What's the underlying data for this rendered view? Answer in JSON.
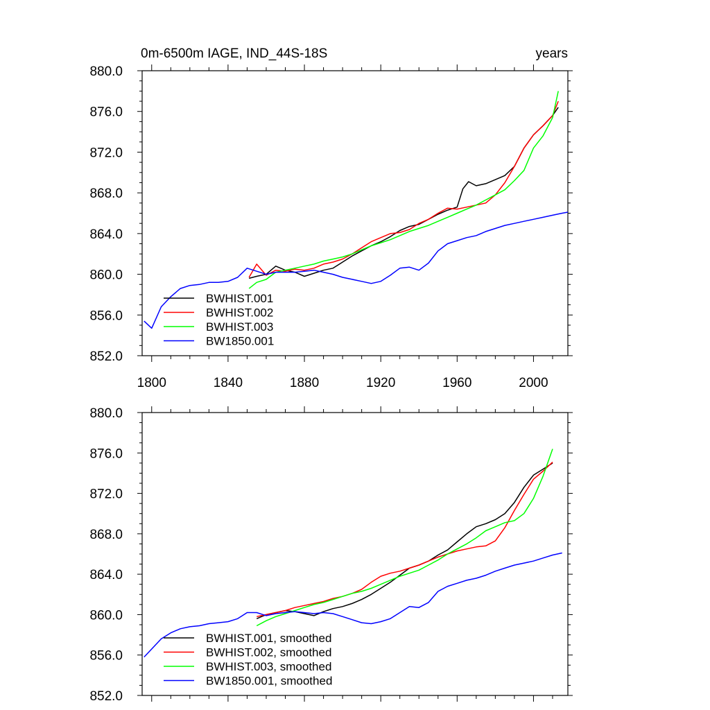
{
  "chart_data": [
    {
      "type": "line",
      "title": "0m-6500m IAGE, IND_44S-18S",
      "units": "years",
      "ylim": [
        852.0,
        880.0
      ],
      "xlim": [
        1795,
        2018
      ],
      "yticks": [
        "852.0",
        "856.0",
        "860.0",
        "864.0",
        "868.0",
        "872.0",
        "876.0",
        "880.0"
      ],
      "xticks": [
        "1800",
        "1840",
        "1880",
        "1920",
        "1960",
        "2000"
      ],
      "legend_position": "bottom-left",
      "grid": false,
      "series": [
        {
          "name": "BWHIST.001",
          "color": "#000000",
          "x": [
            1851,
            1855,
            1860,
            1865,
            1870,
            1875,
            1880,
            1885,
            1890,
            1895,
            1900,
            1905,
            1910,
            1915,
            1920,
            1925,
            1930,
            1935,
            1940,
            1945,
            1950,
            1955,
            1960,
            1963,
            1966,
            1970,
            1975,
            1980,
            1985,
            1990,
            1995,
            2000,
            2005,
            2010,
            2013
          ],
          "values": [
            859.6,
            859.8,
            860.0,
            860.8,
            860.4,
            860.2,
            859.8,
            860.1,
            860.4,
            860.6,
            861.2,
            861.8,
            862.3,
            862.8,
            863.2,
            863.7,
            864.3,
            864.7,
            864.9,
            865.4,
            865.9,
            866.3,
            866.6,
            868.4,
            869.1,
            868.7,
            868.9,
            869.3,
            869.7,
            870.6,
            872.4,
            873.7,
            874.6,
            875.6,
            876.4
          ]
        },
        {
          "name": "BWHIST.002",
          "color": "#ff0000",
          "x": [
            1851,
            1855,
            1860,
            1865,
            1870,
            1875,
            1880,
            1885,
            1890,
            1895,
            1900,
            1905,
            1910,
            1915,
            1920,
            1925,
            1930,
            1935,
            1940,
            1945,
            1950,
            1955,
            1960,
            1965,
            1970,
            1975,
            1980,
            1985,
            1990,
            1995,
            2000,
            2005,
            2010,
            2013
          ],
          "values": [
            859.7,
            861.0,
            859.9,
            860.4,
            860.3,
            860.5,
            860.4,
            860.6,
            861.0,
            861.2,
            861.5,
            862.0,
            862.6,
            863.2,
            863.6,
            864.0,
            864.1,
            864.4,
            865.0,
            865.4,
            866.0,
            866.5,
            866.4,
            866.6,
            866.8,
            867.0,
            867.8,
            869.0,
            870.6,
            872.4,
            873.7,
            874.6,
            875.6,
            877.0
          ]
        },
        {
          "name": "BWHIST.003",
          "color": "#00ff00",
          "x": [
            1851,
            1855,
            1860,
            1865,
            1870,
            1875,
            1880,
            1885,
            1890,
            1895,
            1900,
            1905,
            1910,
            1915,
            1920,
            1925,
            1930,
            1935,
            1940,
            1945,
            1950,
            1955,
            1960,
            1965,
            1970,
            1975,
            1980,
            1985,
            1990,
            1995,
            2000,
            2005,
            2010,
            2013
          ],
          "values": [
            858.6,
            859.2,
            859.5,
            860.2,
            860.4,
            860.6,
            860.8,
            861.0,
            861.3,
            861.5,
            861.7,
            862.0,
            862.4,
            862.8,
            863.1,
            863.4,
            863.8,
            864.2,
            864.5,
            864.8,
            865.2,
            865.6,
            866.0,
            866.4,
            866.8,
            867.3,
            867.8,
            868.3,
            869.2,
            870.2,
            872.4,
            873.6,
            875.4,
            878.0
          ]
        },
        {
          "name": "BW1850.001",
          "color": "#0000ff",
          "x": [
            1796,
            1800,
            1805,
            1810,
            1815,
            1820,
            1825,
            1830,
            1835,
            1840,
            1845,
            1850,
            1855,
            1860,
            1865,
            1870,
            1875,
            1880,
            1885,
            1890,
            1895,
            1900,
            1905,
            1910,
            1915,
            1920,
            1925,
            1930,
            1935,
            1940,
            1945,
            1950,
            1955,
            1960,
            1965,
            1970,
            1975,
            1980,
            1985,
            1990,
            1995,
            2000,
            2005,
            2010,
            2015,
            2018
          ],
          "values": [
            855.4,
            854.7,
            856.8,
            857.8,
            858.6,
            858.9,
            859.0,
            859.2,
            859.2,
            859.3,
            859.7,
            860.6,
            860.3,
            860.0,
            860.2,
            860.2,
            860.2,
            860.3,
            860.4,
            860.2,
            860.0,
            859.7,
            859.5,
            859.3,
            859.1,
            859.3,
            859.9,
            860.6,
            860.7,
            860.4,
            861.1,
            862.3,
            863.0,
            863.3,
            863.6,
            863.8,
            864.2,
            864.5,
            864.8,
            865.0,
            865.2,
            865.4,
            865.6,
            865.8,
            866.0,
            866.1
          ]
        }
      ]
    },
    {
      "type": "line",
      "ylim": [
        852.0,
        880.0
      ],
      "xlim": [
        1795,
        2018
      ],
      "yticks": [
        "852.0",
        "856.0",
        "860.0",
        "864.0",
        "868.0",
        "872.0",
        "876.0",
        "880.0"
      ],
      "legend_position": "bottom-left",
      "grid": false,
      "series": [
        {
          "name": "BWHIST.001, smoothed",
          "color": "#000000",
          "x": [
            1855,
            1860,
            1865,
            1870,
            1875,
            1880,
            1885,
            1890,
            1895,
            1900,
            1905,
            1910,
            1915,
            1920,
            1925,
            1930,
            1935,
            1940,
            1945,
            1950,
            1955,
            1960,
            1965,
            1970,
            1975,
            1980,
            1985,
            1990,
            1995,
            2000,
            2005,
            2010
          ],
          "values": [
            859.6,
            860.0,
            860.2,
            860.4,
            860.3,
            860.1,
            859.9,
            860.3,
            860.6,
            860.8,
            861.1,
            861.5,
            862.0,
            862.6,
            863.2,
            863.9,
            864.6,
            864.9,
            865.3,
            865.9,
            866.4,
            867.2,
            868.0,
            868.7,
            869.0,
            869.4,
            870.0,
            871.1,
            872.6,
            873.8,
            874.4,
            875.0
          ]
        },
        {
          "name": "BWHIST.002, smoothed",
          "color": "#ff0000",
          "x": [
            1855,
            1860,
            1865,
            1870,
            1875,
            1880,
            1885,
            1890,
            1895,
            1900,
            1905,
            1910,
            1915,
            1920,
            1925,
            1930,
            1935,
            1940,
            1945,
            1950,
            1955,
            1960,
            1965,
            1970,
            1975,
            1980,
            1985,
            1990,
            1995,
            2000,
            2005,
            2010
          ],
          "values": [
            859.8,
            860.0,
            860.2,
            860.4,
            860.7,
            860.9,
            861.1,
            861.3,
            861.6,
            861.8,
            862.1,
            862.5,
            863.2,
            863.8,
            864.1,
            864.3,
            864.6,
            864.9,
            865.3,
            865.7,
            866.0,
            866.3,
            866.5,
            866.7,
            866.8,
            867.3,
            868.6,
            870.3,
            871.9,
            873.4,
            874.2,
            875.1
          ]
        },
        {
          "name": "BWHIST.003, smoothed",
          "color": "#00ff00",
          "x": [
            1855,
            1860,
            1865,
            1870,
            1875,
            1880,
            1885,
            1890,
            1895,
            1900,
            1905,
            1910,
            1915,
            1920,
            1925,
            1930,
            1935,
            1940,
            1945,
            1950,
            1955,
            1960,
            1965,
            1970,
            1975,
            1980,
            1985,
            1990,
            1995,
            2000,
            2005,
            2010
          ],
          "values": [
            858.9,
            859.4,
            859.8,
            860.1,
            860.4,
            860.7,
            861.0,
            861.2,
            861.5,
            861.8,
            862.1,
            862.3,
            862.6,
            863.0,
            863.4,
            863.8,
            864.1,
            864.4,
            864.9,
            865.4,
            866.0,
            866.5,
            867.0,
            867.6,
            868.3,
            868.7,
            869.1,
            869.3,
            870.0,
            871.5,
            873.7,
            876.4
          ]
        },
        {
          "name": "BW1850.001, smoothed",
          "color": "#0000ff",
          "x": [
            1796,
            1800,
            1805,
            1810,
            1815,
            1820,
            1825,
            1830,
            1835,
            1840,
            1845,
            1850,
            1855,
            1860,
            1865,
            1870,
            1875,
            1880,
            1885,
            1890,
            1895,
            1900,
            1905,
            1910,
            1915,
            1920,
            1925,
            1930,
            1935,
            1940,
            1945,
            1950,
            1955,
            1960,
            1965,
            1970,
            1975,
            1980,
            1985,
            1990,
            1995,
            2000,
            2005,
            2010,
            2015
          ],
          "values": [
            855.8,
            856.6,
            857.6,
            858.2,
            858.6,
            858.8,
            858.9,
            859.1,
            859.2,
            859.3,
            859.6,
            860.2,
            860.2,
            859.9,
            860.1,
            860.2,
            860.3,
            860.2,
            860.1,
            860.2,
            860.1,
            859.8,
            859.5,
            859.2,
            859.1,
            859.3,
            859.6,
            860.2,
            860.8,
            860.7,
            861.2,
            862.3,
            862.8,
            863.1,
            863.4,
            863.6,
            863.9,
            864.3,
            864.6,
            864.9,
            865.1,
            865.3,
            865.6,
            865.9,
            866.1
          ]
        }
      ]
    }
  ]
}
